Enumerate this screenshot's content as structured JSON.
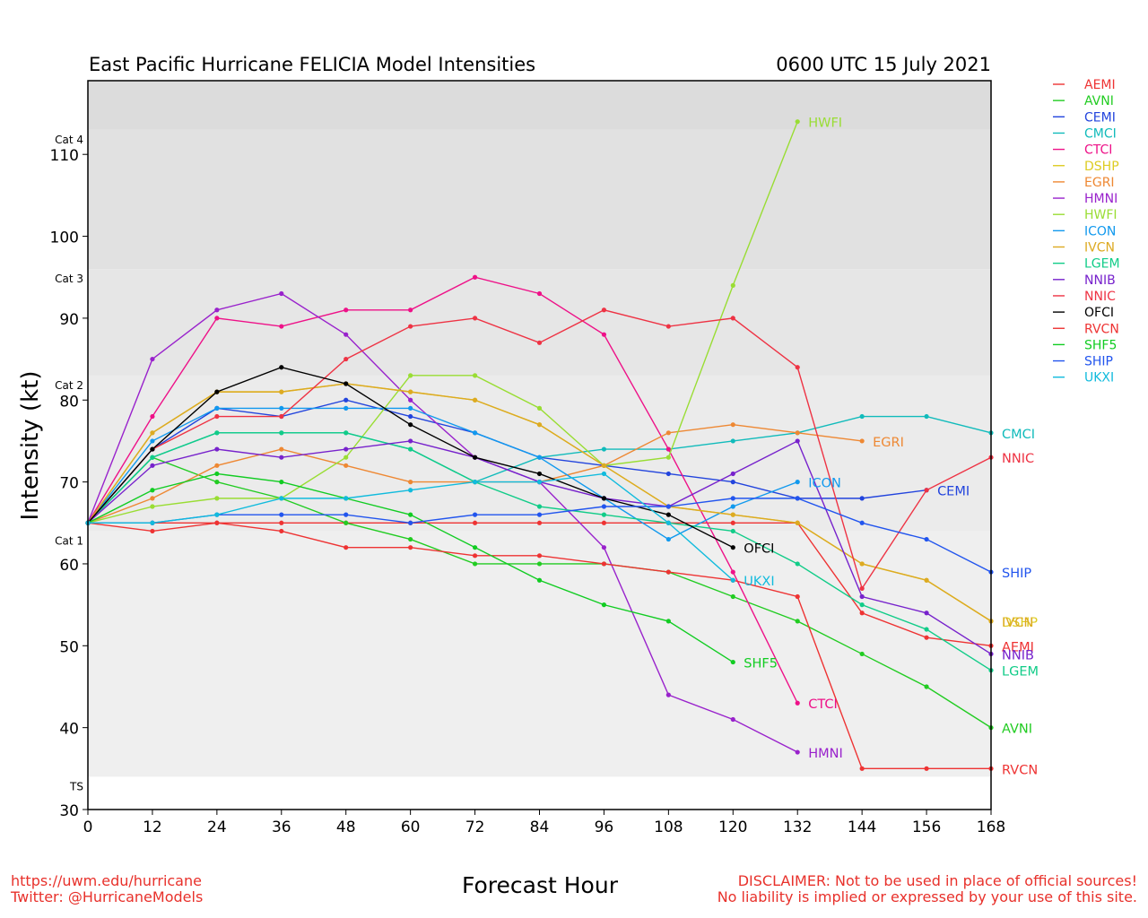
{
  "chart_data": {
    "type": "line",
    "title": "East Pacific Hurricane FELICIA Model Intensities",
    "timestamp": "0600 UTC 15 July 2021",
    "xlabel": "Forecast Hour",
    "ylabel": "Intensity (kt)",
    "xlim": [
      0,
      168
    ],
    "ylim": [
      30,
      119
    ],
    "x_ticks": [
      0,
      12,
      24,
      36,
      48,
      60,
      72,
      84,
      96,
      108,
      120,
      132,
      144,
      156,
      168
    ],
    "y_ticks": [
      30,
      40,
      50,
      60,
      70,
      80,
      90,
      100,
      110
    ],
    "category_bands": [
      {
        "label": "TS",
        "from": 34,
        "to": 64,
        "color": "#efefef"
      },
      {
        "label": "Cat 1",
        "from": 64,
        "to": 83,
        "color": "#ebebeb"
      },
      {
        "label": "Cat 2",
        "from": 83,
        "to": 96,
        "color": "#e6e6e6"
      },
      {
        "label": "Cat 3",
        "from": 96,
        "to": 113,
        "color": "#e1e1e1"
      },
      {
        "label": "Cat 4",
        "from": 113,
        "to": 119,
        "color": "#dcdcdc"
      }
    ],
    "legend_position": "right",
    "series": [
      {
        "name": "AEMI",
        "color": "#ee3333",
        "x": [
          0,
          12,
          24,
          36,
          48,
          60,
          72,
          84,
          96,
          108,
          120,
          132,
          144,
          156,
          168
        ],
        "y": [
          65,
          65,
          65,
          65,
          65,
          65,
          65,
          65,
          65,
          65,
          65,
          65,
          54,
          51,
          50
        ]
      },
      {
        "name": "AVNI",
        "color": "#22cc22",
        "x": [
          0,
          12,
          24,
          36,
          48,
          60,
          72,
          84,
          96,
          108,
          120,
          132,
          144,
          156,
          168
        ],
        "y": [
          65,
          73,
          70,
          68,
          65,
          63,
          60,
          60,
          60,
          59,
          56,
          53,
          49,
          45,
          40
        ]
      },
      {
        "name": "CEMI",
        "color": "#2244dd",
        "x": [
          0,
          12,
          24,
          36,
          48,
          60,
          72,
          84,
          96,
          108,
          120,
          132,
          144,
          156
        ],
        "y": [
          65,
          74,
          79,
          78,
          80,
          78,
          76,
          73,
          72,
          71,
          70,
          68,
          68,
          69
        ]
      },
      {
        "name": "CMCI",
        "color": "#11bbbb",
        "x": [
          0,
          12,
          24,
          36,
          48,
          60,
          72,
          84,
          96,
          108,
          120,
          132,
          144,
          156,
          168
        ],
        "y": [
          65,
          73,
          76,
          76,
          76,
          74,
          70,
          73,
          74,
          74,
          75,
          76,
          78,
          78,
          76
        ]
      },
      {
        "name": "CTCI",
        "color": "#ee1188",
        "x": [
          0,
          12,
          24,
          36,
          48,
          60,
          72,
          84,
          96,
          108,
          120,
          132
        ],
        "y": [
          65,
          78,
          90,
          89,
          91,
          91,
          95,
          93,
          88,
          74,
          59,
          43
        ]
      },
      {
        "name": "DSHP",
        "color": "#ddcc22",
        "x": [
          0,
          12,
          24,
          36,
          48,
          60,
          72,
          84,
          96,
          108,
          120,
          132,
          144,
          156,
          168
        ],
        "y": [
          65,
          76,
          81,
          81,
          82,
          81,
          80,
          77,
          72,
          67,
          66,
          65,
          60,
          58,
          53
        ]
      },
      {
        "name": "EGRI",
        "color": "#ee8833",
        "x": [
          0,
          12,
          24,
          36,
          48,
          60,
          72,
          84,
          96,
          108,
          120,
          132,
          144
        ],
        "y": [
          65,
          68,
          72,
          74,
          72,
          70,
          70,
          70,
          72,
          76,
          77,
          76,
          75
        ]
      },
      {
        "name": "HMNI",
        "color": "#9922cc",
        "x": [
          0,
          12,
          24,
          36,
          48,
          60,
          72,
          84,
          96,
          108,
          120,
          132
        ],
        "y": [
          65,
          85,
          91,
          93,
          88,
          80,
          73,
          70,
          62,
          44,
          41,
          37
        ]
      },
      {
        "name": "HWFI",
        "color": "#99dd33",
        "x": [
          0,
          12,
          24,
          36,
          48,
          60,
          72,
          84,
          96,
          108,
          120,
          132
        ],
        "y": [
          65,
          67,
          68,
          68,
          73,
          83,
          83,
          79,
          72,
          73,
          94,
          114
        ]
      },
      {
        "name": "ICON",
        "color": "#1199ee",
        "x": [
          0,
          12,
          24,
          36,
          48,
          60,
          72,
          84,
          96,
          108,
          120,
          132
        ],
        "y": [
          65,
          75,
          79,
          79,
          79,
          79,
          76,
          73,
          68,
          63,
          67,
          70
        ]
      },
      {
        "name": "IVCN",
        "color": "#ddaa22",
        "x": [
          0,
          12,
          24,
          36,
          48,
          60,
          72,
          84,
          96,
          108,
          120,
          132,
          144,
          156,
          168
        ],
        "y": [
          65,
          76,
          81,
          81,
          82,
          81,
          80,
          77,
          72,
          67,
          66,
          65,
          60,
          58,
          53
        ]
      },
      {
        "name": "LGEM",
        "color": "#11cc88",
        "x": [
          0,
          12,
          24,
          36,
          48,
          60,
          72,
          84,
          96,
          108,
          120,
          132,
          144,
          156,
          168
        ],
        "y": [
          65,
          73,
          76,
          76,
          76,
          74,
          70,
          67,
          66,
          65,
          64,
          60,
          55,
          52,
          47
        ]
      },
      {
        "name": "NNIB",
        "color": "#7722cc",
        "x": [
          0,
          12,
          24,
          36,
          48,
          60,
          72,
          84,
          96,
          108,
          120,
          132,
          144,
          156,
          168
        ],
        "y": [
          65,
          72,
          74,
          73,
          74,
          75,
          73,
          70,
          68,
          67,
          71,
          75,
          56,
          54,
          49
        ]
      },
      {
        "name": "NNIC",
        "color": "#ee3344",
        "x": [
          0,
          12,
          24,
          36,
          48,
          60,
          72,
          84,
          96,
          108,
          120,
          132,
          144,
          156,
          168
        ],
        "y": [
          65,
          74,
          78,
          78,
          85,
          89,
          90,
          87,
          91,
          89,
          90,
          84,
          57,
          69,
          73
        ]
      },
      {
        "name": "OFCI",
        "color": "#000000",
        "x": [
          0,
          12,
          24,
          36,
          48,
          60,
          72,
          84,
          96,
          108,
          120
        ],
        "y": [
          65,
          74,
          81,
          84,
          82,
          77,
          73,
          71,
          68,
          66,
          62
        ]
      },
      {
        "name": "RVCN",
        "color": "#ee3333",
        "x": [
          0,
          12,
          24,
          36,
          48,
          60,
          72,
          84,
          96,
          108,
          120,
          132,
          144,
          156,
          168
        ],
        "y": [
          65,
          64,
          65,
          64,
          62,
          62,
          61,
          61,
          60,
          59,
          58,
          56,
          35,
          35,
          35
        ]
      },
      {
        "name": "SHF5",
        "color": "#11cc22",
        "x": [
          0,
          12,
          24,
          36,
          48,
          60,
          72,
          84,
          96,
          108,
          120
        ],
        "y": [
          65,
          69,
          71,
          70,
          68,
          66,
          62,
          58,
          55,
          53,
          48
        ]
      },
      {
        "name": "SHIP",
        "color": "#2255ee",
        "x": [
          0,
          12,
          24,
          36,
          48,
          60,
          72,
          84,
          96,
          108,
          120,
          132,
          144,
          156,
          168
        ],
        "y": [
          65,
          65,
          66,
          66,
          66,
          65,
          66,
          66,
          67,
          67,
          68,
          68,
          65,
          63,
          59
        ]
      },
      {
        "name": "UKXI",
        "color": "#11bbdd",
        "x": [
          0,
          12,
          24,
          36,
          48,
          60,
          72,
          84,
          96,
          108,
          120
        ],
        "y": [
          65,
          65,
          66,
          68,
          68,
          69,
          70,
          70,
          71,
          65,
          58
        ]
      }
    ]
  },
  "footer": {
    "url": "https://uwm.edu/hurricane",
    "twitter": "Twitter: @HurricaneModels",
    "disclaimer_line1": "DISCLAIMER: Not to be used in place of official sources!",
    "disclaimer_line2": "No liability is implied or expressed by your use of this site."
  }
}
